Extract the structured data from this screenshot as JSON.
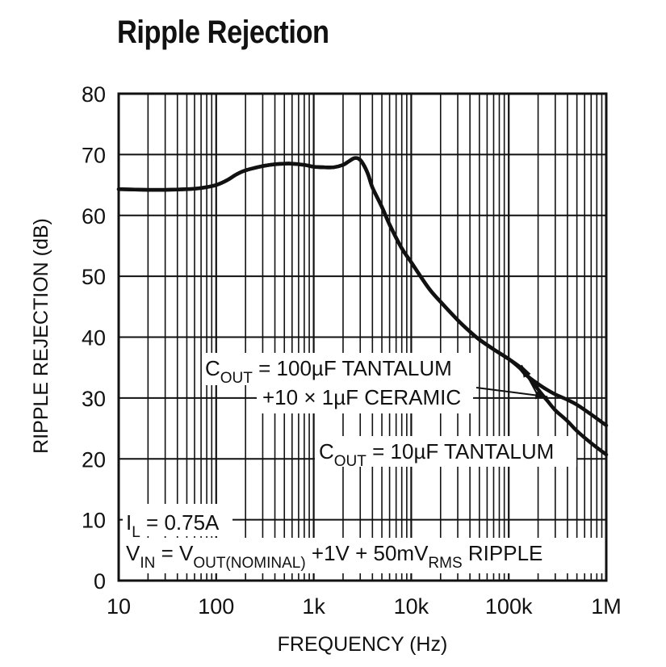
{
  "chart_data": {
    "type": "line",
    "title": "Ripple Rejection",
    "xlabel": "FREQUENCY (Hz)",
    "ylabel": "RIPPLE REJECTION (dB)",
    "x_scale": "log",
    "xlim": [
      10,
      1000000
    ],
    "ylim": [
      0,
      80
    ],
    "grid": true,
    "x_tick_values": [
      10,
      100,
      1000,
      10000,
      100000,
      1000000
    ],
    "x_tick_labels": [
      "10",
      "100",
      "1k",
      "10k",
      "100k",
      "1M"
    ],
    "y_tick_values": [
      0,
      10,
      20,
      30,
      40,
      50,
      60,
      70,
      80
    ],
    "y_tick_labels": [
      "0",
      "10",
      "20",
      "30",
      "40",
      "50",
      "60",
      "70",
      "80"
    ],
    "series": [
      {
        "x": [
          10,
          20,
          30,
          50,
          70,
          100,
          130,
          160,
          200,
          300,
          400,
          500,
          600,
          800,
          1000,
          1300,
          1600,
          2000,
          2300,
          2600,
          2900,
          3200,
          3600,
          4000,
          5000,
          6000,
          8000,
          10000,
          15000,
          20000,
          30000,
          40000,
          50000,
          70000,
          100000,
          130000,
          150000,
          200000,
          250000,
          300000,
          400000,
          500000,
          700000,
          1000000
        ],
        "y": [
          64.3,
          64.2,
          64.2,
          64.3,
          64.5,
          65.0,
          65.8,
          66.7,
          67.4,
          68.1,
          68.4,
          68.5,
          68.5,
          68.3,
          68.0,
          67.9,
          67.9,
          68.3,
          68.9,
          69.4,
          69.3,
          68.5,
          66.8,
          64.6,
          61.4,
          58.5,
          54.6,
          52.3,
          48.1,
          45.8,
          42.8,
          40.9,
          39.6,
          38.0,
          36.4,
          34.9,
          33.8,
          32.3,
          31.3,
          30.6,
          29.7,
          28.9,
          27.3,
          25.5
        ]
      },
      {
        "x": [
          10,
          20,
          30,
          50,
          70,
          100,
          130,
          160,
          200,
          300,
          400,
          500,
          600,
          800,
          1000,
          1300,
          1600,
          2000,
          2300,
          2600,
          2900,
          3200,
          3600,
          4000,
          5000,
          6000,
          8000,
          10000,
          15000,
          20000,
          30000,
          40000,
          50000,
          70000,
          100000,
          130000,
          150000,
          200000,
          250000,
          300000,
          400000,
          500000,
          700000,
          1000000
        ],
        "y": [
          64.3,
          64.2,
          64.2,
          64.3,
          64.5,
          65.0,
          65.8,
          66.7,
          67.4,
          68.1,
          68.4,
          68.5,
          68.5,
          68.3,
          68.0,
          67.9,
          67.9,
          68.3,
          68.9,
          69.4,
          69.3,
          68.5,
          66.8,
          64.6,
          61.4,
          58.5,
          54.6,
          52.3,
          48.1,
          45.8,
          42.8,
          40.9,
          39.6,
          38.0,
          36.4,
          35.1,
          34.0,
          31.4,
          29.5,
          28.0,
          26.2,
          24.6,
          22.6,
          20.7
        ]
      }
    ],
    "annotations": {
      "cout_100uf": {
        "prefix": "C",
        "sub": "OUT",
        "suffix": " = 100µF TANTALUM"
      },
      "ceramic": "+10 × 1µF CERAMIC",
      "cout_10uf": {
        "prefix": "C",
        "sub": "OUT",
        "suffix": " = 10µF TANTALUM"
      },
      "il": {
        "prefix": "I",
        "sub": "L",
        "suffix": " = 0.75A"
      },
      "vin": {
        "p1": "V",
        "s1": "IN",
        "p2": " = V",
        "s2": "OUT(NOMINAL)",
        "p3": " +1V + 50mV",
        "s3": "RMS",
        "p4": " RIPPLE"
      }
    }
  },
  "colors": {
    "line": "#111111",
    "grid": "#111111",
    "background": "#ffffff"
  }
}
